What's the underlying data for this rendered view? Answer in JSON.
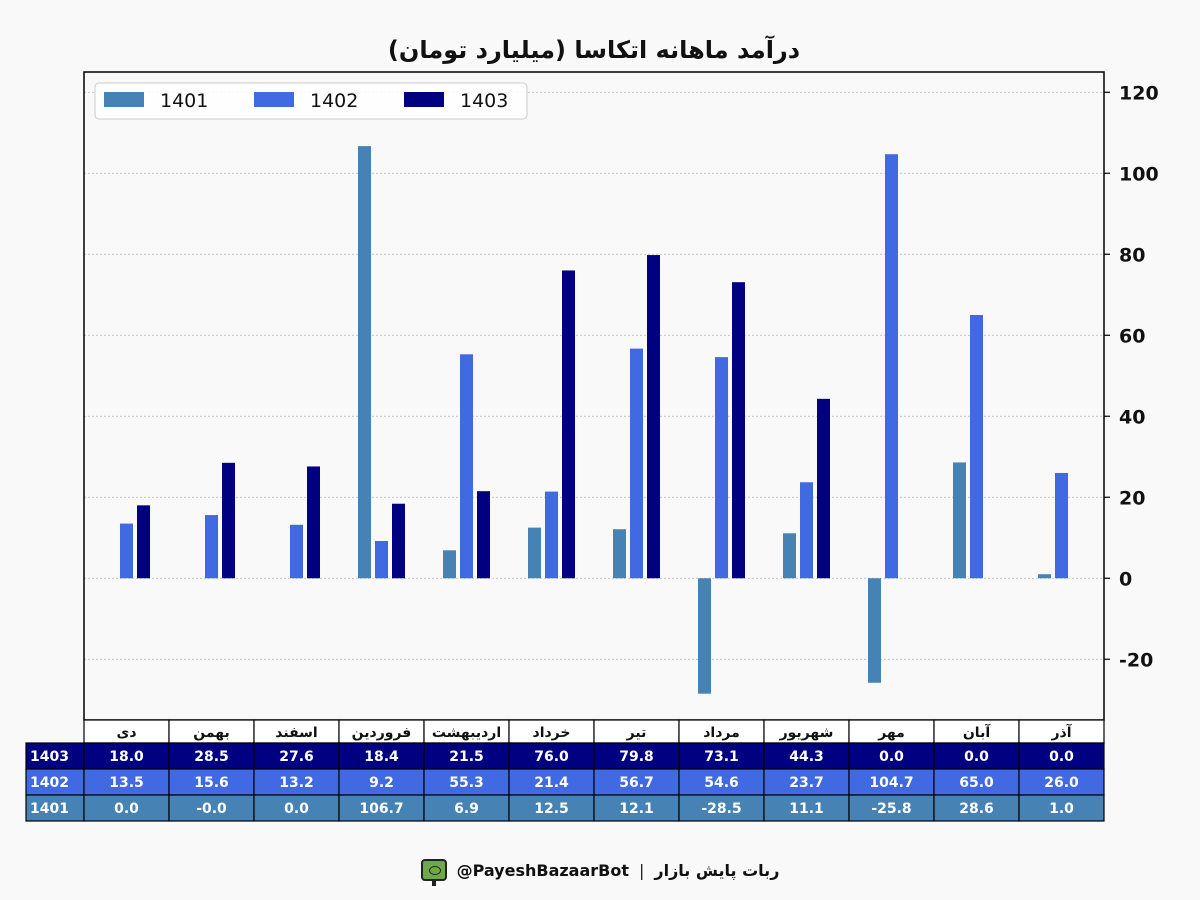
{
  "chart_data": {
    "type": "bar",
    "title": "درآمد ماهانه اتکاسا (میلیارد تومان)",
    "categories": [
      "دی",
      "بهمن",
      "اسفند",
      "فروردین",
      "اردیبهشت",
      "خرداد",
      "تیر",
      "مرداد",
      "شهریور",
      "مهر",
      "آبان",
      "آذر"
    ],
    "series": [
      {
        "name": "1401",
        "color": "#4682b4",
        "values": [
          0.0,
          -0.0,
          0.0,
          106.7,
          6.9,
          12.5,
          12.1,
          -28.5,
          11.1,
          -25.8,
          28.6,
          1.0
        ]
      },
      {
        "name": "1402",
        "color": "#4169e1",
        "values": [
          13.5,
          15.6,
          13.2,
          9.2,
          55.3,
          21.4,
          56.7,
          54.6,
          23.7,
          104.7,
          65.0,
          26.0
        ]
      },
      {
        "name": "1403",
        "color": "#000080",
        "values": [
          18.0,
          28.5,
          27.6,
          18.4,
          21.5,
          76.0,
          79.8,
          73.1,
          44.3,
          0.0,
          0.0,
          0.0
        ]
      }
    ],
    "table": {
      "row_order": [
        "1403",
        "1402",
        "1401"
      ],
      "rows": {
        "1403": [
          "18.0",
          "28.5",
          "27.6",
          "18.4",
          "21.5",
          "76.0",
          "79.8",
          "73.1",
          "44.3",
          "0.0",
          "0.0",
          "0.0"
        ],
        "1402": [
          "13.5",
          "15.6",
          "13.2",
          "9.2",
          "55.3",
          "21.4",
          "56.7",
          "54.6",
          "23.7",
          "104.7",
          "65.0",
          "26.0"
        ],
        "1401": [
          "0.0",
          "-0.0",
          "0.0",
          "106.7",
          "6.9",
          "12.5",
          "12.1",
          "-28.5",
          "11.1",
          "-25.8",
          "28.6",
          "1.0"
        ]
      }
    },
    "ylim": [
      -35,
      125
    ],
    "yticks": [
      -20,
      0,
      20,
      40,
      60,
      80,
      100,
      120
    ],
    "y_axis_side": "right",
    "grid": true,
    "legend_position": "top-left"
  },
  "footer": {
    "bot_name": "ربات پایش بازار",
    "separator": "|",
    "handle": "@PayeshBazaarBot",
    "icon": "tv-icon"
  }
}
